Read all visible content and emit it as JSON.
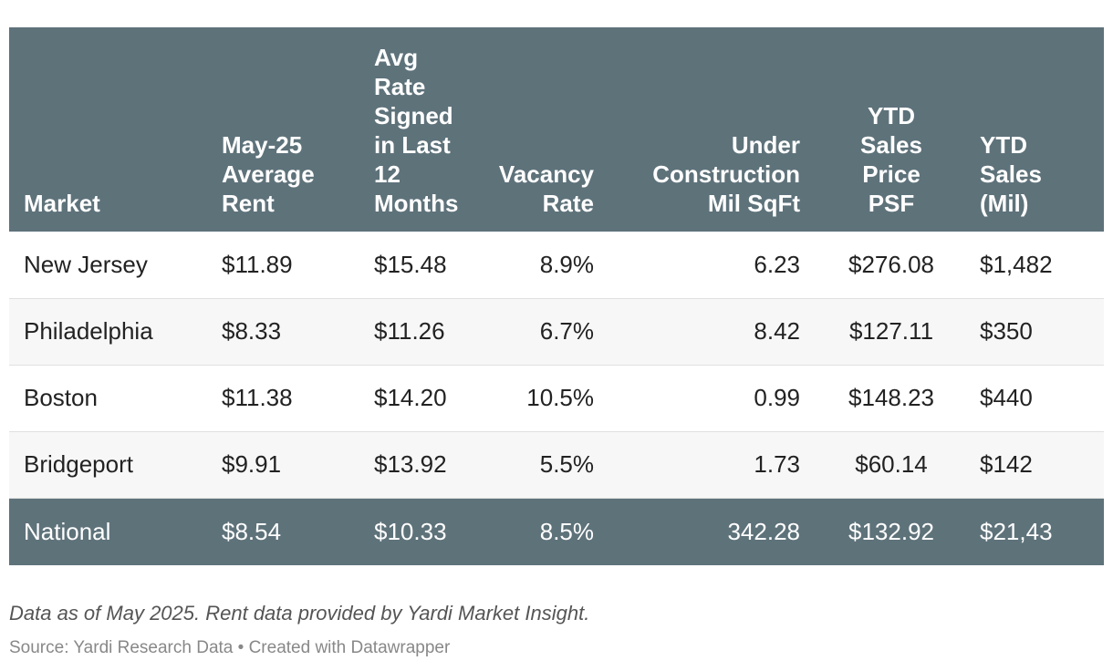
{
  "chart_data": {
    "type": "table",
    "columns": [
      "Market",
      "May-25 Average Rent",
      "Avg Rate Signed in Last 12 Months",
      "Vacancy Rate",
      "Under Construction Mil SqFt",
      "YTD Sales Price PSF",
      "YTD Sales (Mil)"
    ],
    "rows": [
      [
        "New Jersey",
        "$11.89",
        "$15.48",
        "8.9%",
        "6.23",
        "$276.08",
        "$1,482"
      ],
      [
        "Philadelphia",
        "$8.33",
        "$11.26",
        "6.7%",
        "8.42",
        "$127.11",
        "$350"
      ],
      [
        "Boston",
        "$11.38",
        "$14.20",
        "10.5%",
        "0.99",
        "$148.23",
        "$440"
      ],
      [
        "Bridgeport",
        "$9.91",
        "$13.92",
        "5.5%",
        "1.73",
        "$60.14",
        "$142"
      ]
    ],
    "total_row": [
      "National",
      "$8.54",
      "$10.33",
      "8.5%",
      "342.28",
      "$132.92",
      "$21,43"
    ]
  },
  "notes": "Data as of May 2025. Rent data provided by Yardi Market Insight.",
  "source": "Source: Yardi Research Data • Created with Datawrapper",
  "colors": {
    "header_bg": "#5e727a",
    "stripe_bg": "#f7f7f7"
  }
}
